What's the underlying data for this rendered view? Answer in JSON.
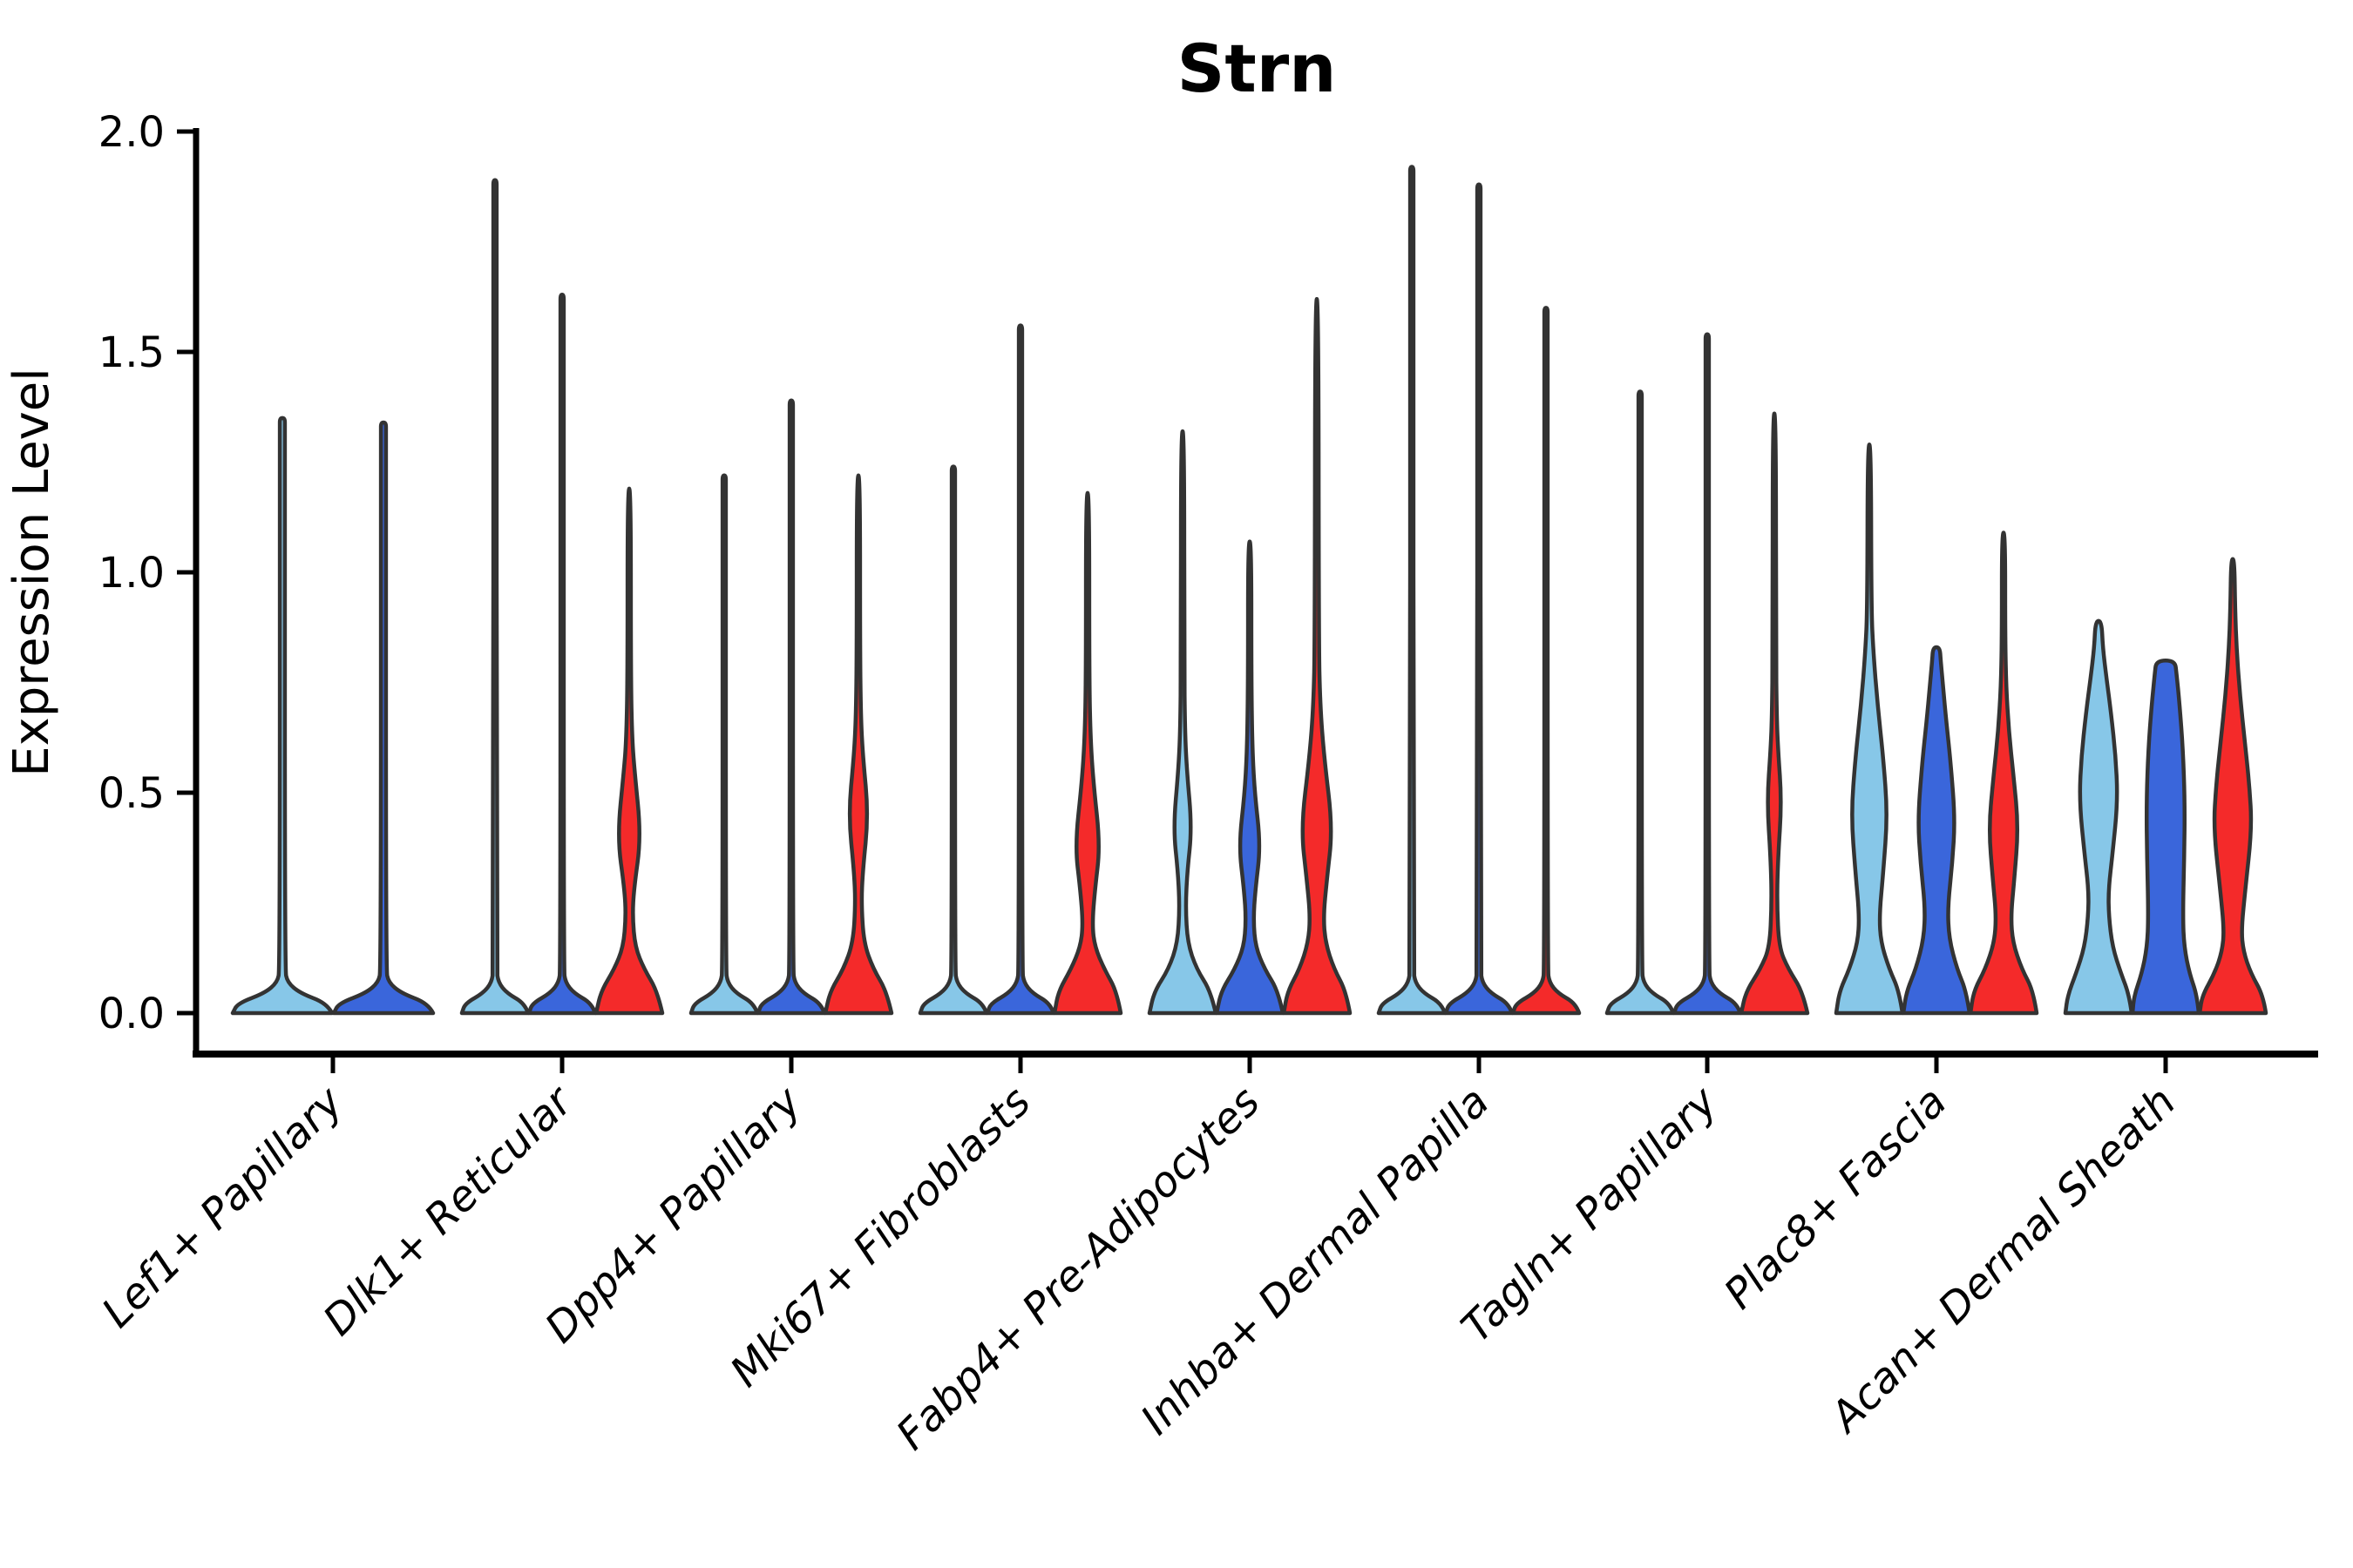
{
  "title": "Strn",
  "y_axis": {
    "label": "Expression Level",
    "tick_labels": [
      "0.0",
      "0.5",
      "1.0",
      "1.5",
      "2.0"
    ],
    "tick_values": [
      0.0,
      0.5,
      1.0,
      1.5,
      2.0
    ],
    "min": 0.0,
    "max": 2.0
  },
  "colors": {
    "skyblue": "#87C7E8",
    "blue": "#3A66DB",
    "red": "#F42A2A",
    "stroke": "#333333",
    "axis": "#000000"
  },
  "chart_data": {
    "type": "violin",
    "title": "Strn",
    "ylabel": "Expression Level",
    "xlabel": "",
    "ylim": [
      0,
      2.0
    ],
    "grid": false,
    "legend": "none",
    "categories": [
      "Lef1+ Papillary",
      "Dlk1+ Reticular",
      "Dpp4+ Papillary",
      "Mki67+ Fibroblasts",
      "Fabp4+ Pre-Adipocytes",
      "Inhba+ Dermal Papilla",
      "Tagln+ Papillary",
      "Plac8+ Fascia",
      "Acan+ Dermal Sheath"
    ],
    "groups": [
      {
        "label": "Lef1+ Papillary",
        "violins": [
          {
            "color": "skyblue",
            "kind": "spike",
            "max": 1.35
          },
          {
            "color": "blue",
            "kind": "spike",
            "max": 1.34
          }
        ]
      },
      {
        "label": "Dlk1+ Reticular",
        "violins": [
          {
            "color": "skyblue",
            "kind": "spike",
            "max": 1.89
          },
          {
            "color": "blue",
            "kind": "spike",
            "max": 1.63
          },
          {
            "color": "red",
            "kind": "shaped",
            "max": 1.19,
            "profile": [
              [
                0,
                1
              ],
              [
                0.05,
                0.85
              ],
              [
                0.1,
                0.45
              ],
              [
                0.15,
                0.18
              ],
              [
                0.22,
                0.1
              ],
              [
                0.28,
                0.14
              ],
              [
                0.4,
                0.36
              ],
              [
                0.55,
                0.16
              ],
              [
                0.62,
                0.09
              ],
              [
                0.75,
                0.05
              ],
              [
                1.19,
                0.05
              ]
            ]
          }
        ]
      },
      {
        "label": "Dpp4+ Papillary",
        "violins": [
          {
            "color": "skyblue",
            "kind": "spike",
            "max": 1.22
          },
          {
            "color": "blue",
            "kind": "spike",
            "max": 1.39
          },
          {
            "color": "red",
            "kind": "shaped",
            "max": 1.22,
            "profile": [
              [
                0,
                1
              ],
              [
                0.05,
                0.85
              ],
              [
                0.1,
                0.45
              ],
              [
                0.16,
                0.16
              ],
              [
                0.25,
                0.09
              ],
              [
                0.32,
                0.13
              ],
              [
                0.45,
                0.3
              ],
              [
                0.58,
                0.14
              ],
              [
                0.66,
                0.08
              ],
              [
                0.8,
                0.05
              ],
              [
                1.22,
                0.05
              ]
            ]
          }
        ]
      },
      {
        "label": "Mki67+ Fibroblasts",
        "violins": [
          {
            "color": "skyblue",
            "kind": "spike",
            "max": 1.24
          },
          {
            "color": "blue",
            "kind": "spike",
            "max": 1.56
          },
          {
            "color": "red",
            "kind": "shaped",
            "max": 1.18,
            "profile": [
              [
                0,
                1
              ],
              [
                0.05,
                0.88
              ],
              [
                0.1,
                0.5
              ],
              [
                0.15,
                0.22
              ],
              [
                0.2,
                0.14
              ],
              [
                0.28,
                0.22
              ],
              [
                0.38,
                0.38
              ],
              [
                0.52,
                0.18
              ],
              [
                0.62,
                0.09
              ],
              [
                0.75,
                0.05
              ],
              [
                1.18,
                0.05
              ]
            ]
          }
        ]
      },
      {
        "label": "Fabp4+ Pre-Adipocytes",
        "violins": [
          {
            "color": "skyblue",
            "kind": "shaped",
            "max": 1.32,
            "profile": [
              [
                0,
                1
              ],
              [
                0.05,
                0.85
              ],
              [
                0.1,
                0.42
              ],
              [
                0.16,
                0.15
              ],
              [
                0.24,
                0.09
              ],
              [
                0.32,
                0.14
              ],
              [
                0.42,
                0.28
              ],
              [
                0.55,
                0.13
              ],
              [
                0.64,
                0.07
              ],
              [
                0.8,
                0.05
              ],
              [
                1.32,
                0.05
              ]
            ]
          },
          {
            "color": "blue",
            "kind": "shaped",
            "max": 1.07,
            "profile": [
              [
                0,
                1
              ],
              [
                0.05,
                0.86
              ],
              [
                0.1,
                0.45
              ],
              [
                0.15,
                0.18
              ],
              [
                0.21,
                0.11
              ],
              [
                0.28,
                0.17
              ],
              [
                0.38,
                0.33
              ],
              [
                0.5,
                0.15
              ],
              [
                0.6,
                0.08
              ],
              [
                0.75,
                0.05
              ],
              [
                1.07,
                0.05
              ]
            ]
          },
          {
            "color": "red",
            "kind": "shaped",
            "max": 1.62,
            "profile": [
              [
                0,
                1
              ],
              [
                0.05,
                0.88
              ],
              [
                0.1,
                0.52
              ],
              [
                0.16,
                0.26
              ],
              [
                0.22,
                0.2
              ],
              [
                0.3,
                0.3
              ],
              [
                0.42,
                0.48
              ],
              [
                0.58,
                0.22
              ],
              [
                0.7,
                0.1
              ],
              [
                0.85,
                0.06
              ],
              [
                1.62,
                0.05
              ]
            ]
          }
        ]
      },
      {
        "label": "Inhba+ Dermal Papilla",
        "violins": [
          {
            "color": "skyblue",
            "kind": "spike",
            "max": 1.92
          },
          {
            "color": "blue",
            "kind": "spike",
            "max": 1.88
          },
          {
            "color": "red",
            "kind": "spike",
            "max": 1.6
          }
        ]
      },
      {
        "label": "Tagln+ Papillary",
        "violins": [
          {
            "color": "skyblue",
            "kind": "spike",
            "max": 1.41
          },
          {
            "color": "blue",
            "kind": "spike",
            "max": 1.54
          },
          {
            "color": "red",
            "kind": "shaped",
            "max": 1.36,
            "profile": [
              [
                0,
                1
              ],
              [
                0.05,
                0.85
              ],
              [
                0.1,
                0.42
              ],
              [
                0.15,
                0.14
              ],
              [
                0.25,
                0.08
              ],
              [
                0.35,
                0.11
              ],
              [
                0.48,
                0.22
              ],
              [
                0.6,
                0.11
              ],
              [
                0.68,
                0.07
              ],
              [
                0.82,
                0.05
              ],
              [
                1.36,
                0.05
              ]
            ]
          }
        ]
      },
      {
        "label": "Plac8+ Fascia",
        "violins": [
          {
            "color": "skyblue",
            "kind": "shaped",
            "max": 1.29,
            "profile": [
              [
                0,
                1
              ],
              [
                0.05,
                0.9
              ],
              [
                0.1,
                0.6
              ],
              [
                0.16,
                0.35
              ],
              [
                0.22,
                0.3
              ],
              [
                0.32,
                0.42
              ],
              [
                0.45,
                0.55
              ],
              [
                0.58,
                0.42
              ],
              [
                0.7,
                0.25
              ],
              [
                0.82,
                0.12
              ],
              [
                0.92,
                0.06
              ],
              [
                1.29,
                0.05
              ]
            ]
          },
          {
            "color": "blue",
            "kind": "shaped",
            "max": 0.83,
            "profile": [
              [
                0,
                1
              ],
              [
                0.05,
                0.9
              ],
              [
                0.1,
                0.62
              ],
              [
                0.17,
                0.38
              ],
              [
                0.24,
                0.34
              ],
              [
                0.34,
                0.48
              ],
              [
                0.44,
                0.56
              ],
              [
                0.56,
                0.44
              ],
              [
                0.66,
                0.3
              ],
              [
                0.74,
                0.2
              ],
              [
                0.8,
                0.13
              ],
              [
                0.83,
                0.1
              ]
            ]
          },
          {
            "color": "red",
            "kind": "shaped",
            "max": 1.09,
            "profile": [
              [
                0,
                1
              ],
              [
                0.05,
                0.9
              ],
              [
                0.1,
                0.55
              ],
              [
                0.16,
                0.28
              ],
              [
                0.22,
                0.22
              ],
              [
                0.3,
                0.32
              ],
              [
                0.42,
                0.45
              ],
              [
                0.54,
                0.3
              ],
              [
                0.64,
                0.16
              ],
              [
                0.74,
                0.08
              ],
              [
                0.85,
                0.05
              ],
              [
                1.09,
                0.05
              ]
            ]
          }
        ]
      },
      {
        "label": "Acan+ Dermal Sheath",
        "violins": [
          {
            "color": "skyblue",
            "kind": "shaped",
            "max": 0.89,
            "profile": [
              [
                0,
                1
              ],
              [
                0.04,
                0.93
              ],
              [
                0.09,
                0.68
              ],
              [
                0.15,
                0.42
              ],
              [
                0.22,
                0.31
              ],
              [
                0.28,
                0.3
              ],
              [
                0.36,
                0.42
              ],
              [
                0.48,
                0.58
              ],
              [
                0.58,
                0.52
              ],
              [
                0.68,
                0.38
              ],
              [
                0.76,
                0.24
              ],
              [
                0.83,
                0.13
              ],
              [
                0.89,
                0.09
              ]
            ]
          },
          {
            "color": "blue",
            "kind": "shaped",
            "max": 0.8,
            "profile": [
              [
                0,
                1
              ],
              [
                0.04,
                0.95
              ],
              [
                0.09,
                0.72
              ],
              [
                0.15,
                0.56
              ],
              [
                0.22,
                0.52
              ],
              [
                0.35,
                0.56
              ],
              [
                0.48,
                0.58
              ],
              [
                0.6,
                0.52
              ],
              [
                0.7,
                0.42
              ],
              [
                0.77,
                0.33
              ],
              [
                0.8,
                0.28
              ]
            ]
          },
          {
            "color": "red",
            "kind": "shaped",
            "max": 1.03,
            "profile": [
              [
                0,
                1
              ],
              [
                0.04,
                0.92
              ],
              [
                0.09,
                0.55
              ],
              [
                0.14,
                0.32
              ],
              [
                0.19,
                0.26
              ],
              [
                0.28,
                0.38
              ],
              [
                0.42,
                0.58
              ],
              [
                0.52,
                0.5
              ],
              [
                0.62,
                0.36
              ],
              [
                0.72,
                0.22
              ],
              [
                0.82,
                0.12
              ],
              [
                0.92,
                0.07
              ],
              [
                1.03,
                0.05
              ]
            ]
          }
        ]
      }
    ]
  }
}
